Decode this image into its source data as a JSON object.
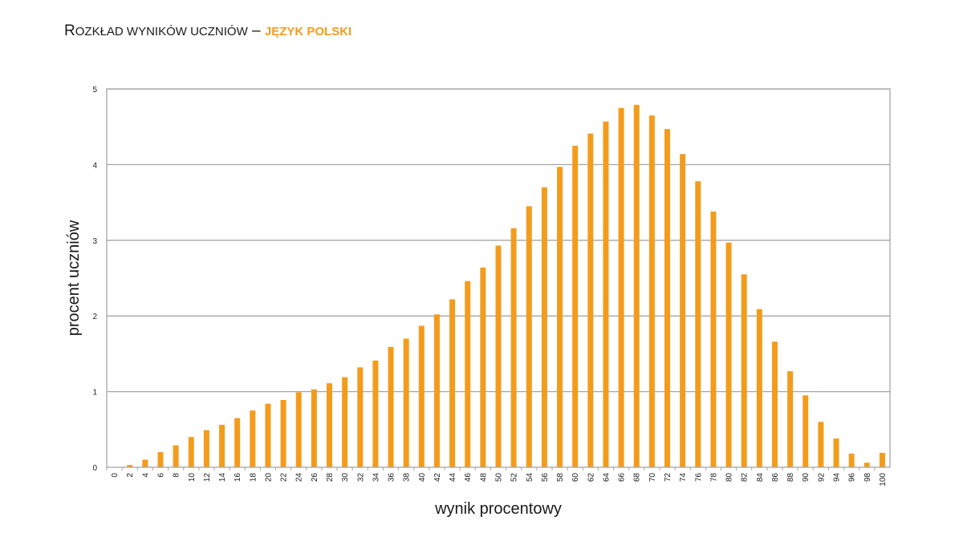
{
  "title": {
    "first_letter": "R",
    "rest_caps": "OZKŁAD WYNIKÓW UCZNIÓW",
    "dash": "–",
    "subject": "JĘZYK POLSKI"
  },
  "colors": {
    "bar": "#f39c1c",
    "grid": "#a6a6a6",
    "accent": "#f39c1c"
  },
  "chart_data": {
    "type": "bar",
    "title": "Rozkład wyników uczniów – język polski",
    "xlabel": "wynik procentowy",
    "ylabel": "procent uczniów",
    "ylim": [
      0,
      5
    ],
    "yticks": [
      0,
      1,
      2,
      3,
      4,
      5
    ],
    "grid": true,
    "categories": [
      "0",
      "2",
      "4",
      "6",
      "8",
      "10",
      "12",
      "14",
      "16",
      "18",
      "20",
      "22",
      "24",
      "26",
      "28",
      "30",
      "32",
      "34",
      "36",
      "38",
      "40",
      "42",
      "44",
      "46",
      "48",
      "50",
      "52",
      "54",
      "56",
      "58",
      "60",
      "62",
      "64",
      "66",
      "68",
      "70",
      "72",
      "74",
      "76",
      "78",
      "80",
      "82",
      "84",
      "86",
      "88",
      "90",
      "92",
      "94",
      "96",
      "98",
      "100"
    ],
    "values": [
      0,
      0.03,
      0.1,
      0.2,
      0.29,
      0.4,
      0.49,
      0.56,
      0.65,
      0.75,
      0.84,
      0.89,
      0.99,
      1.03,
      1.11,
      1.19,
      1.32,
      1.41,
      1.59,
      1.7,
      1.87,
      2.02,
      2.22,
      2.46,
      2.64,
      2.93,
      3.16,
      3.45,
      3.7,
      3.97,
      4.25,
      4.41,
      4.57,
      4.75,
      4.79,
      4.65,
      4.47,
      4.14,
      3.78,
      3.38,
      2.97,
      2.55,
      2.09,
      1.66,
      1.27,
      0.95,
      0.6,
      0.38,
      0.18,
      0.06,
      0.19
    ]
  }
}
